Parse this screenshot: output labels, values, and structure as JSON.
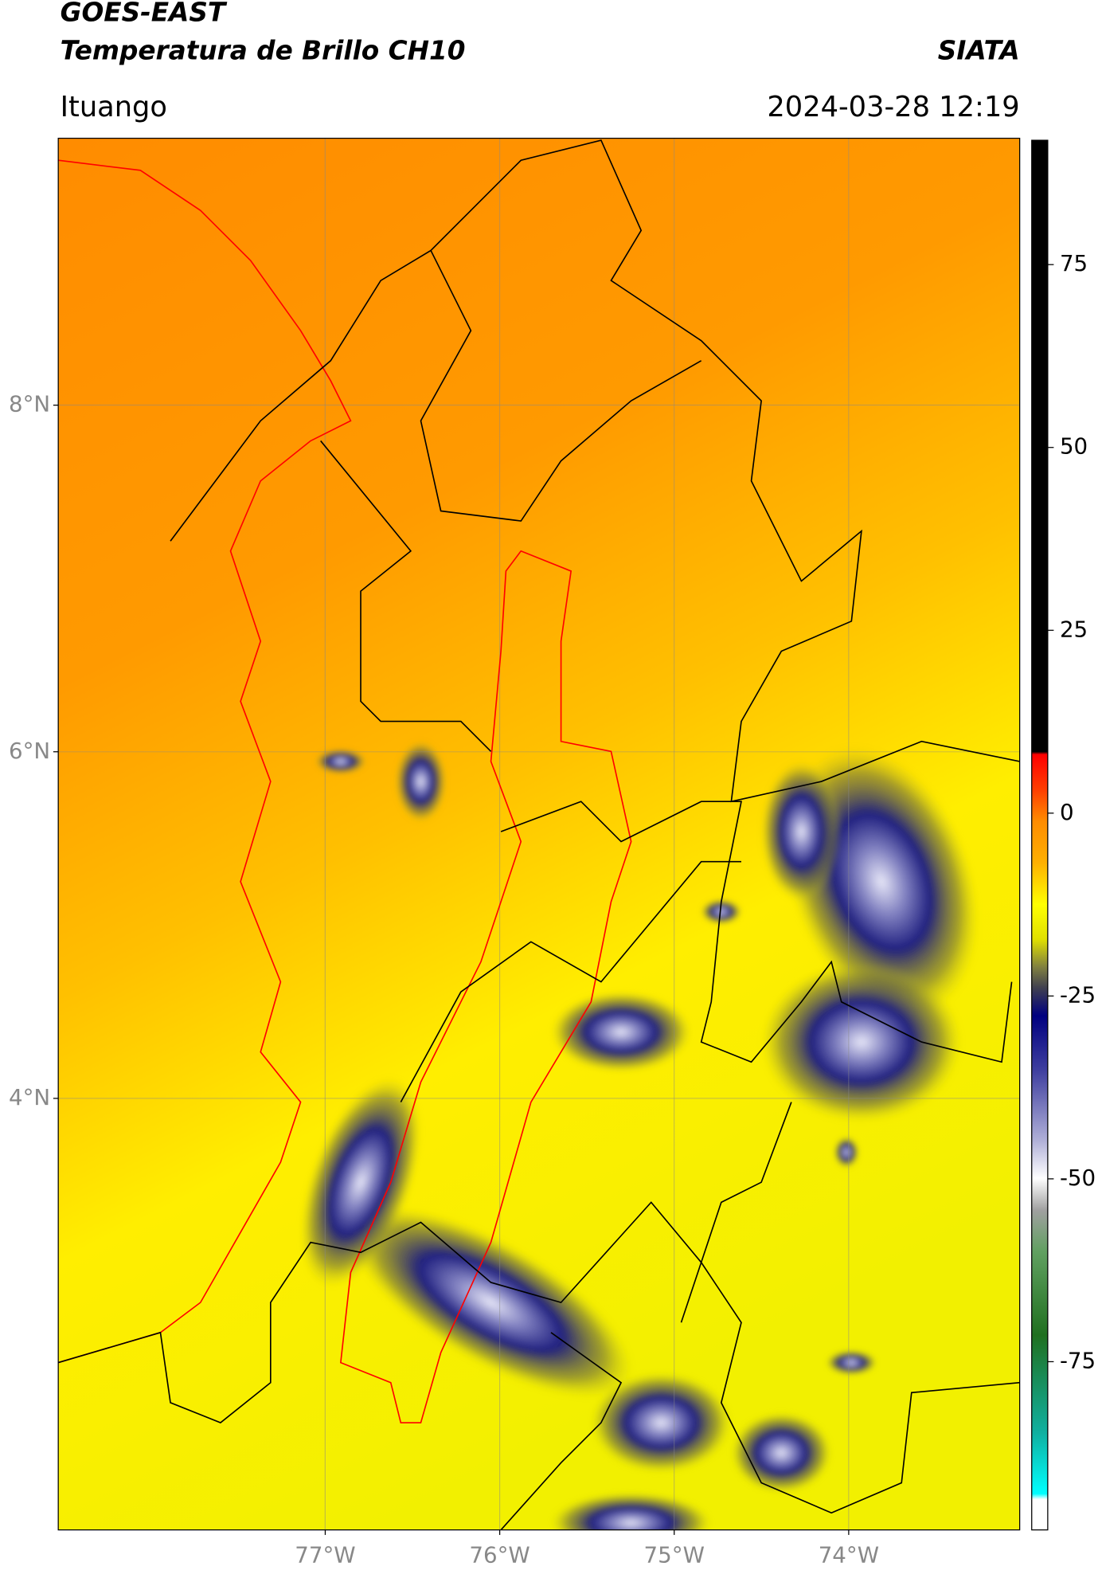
{
  "header": {
    "title": "GOES-EAST",
    "subtitle": "Temperatura de Brillo CH10",
    "source": "SIATA",
    "location": "Ituango",
    "datetime": "2024-03-28 12:19"
  },
  "map": {
    "lon_range": [
      -78.53,
      -73.02
    ],
    "lat_range": [
      1.51,
      9.54
    ],
    "grid": true,
    "lat_ticks": [
      {
        "value": 8,
        "label": "8°N"
      },
      {
        "value": 6,
        "label": "6°N"
      },
      {
        "value": 4,
        "label": "4°N"
      }
    ],
    "lon_ticks": [
      {
        "value": -77,
        "label": "77°W"
      },
      {
        "value": -76,
        "label": "76°W"
      },
      {
        "value": -75,
        "label": "75°W"
      },
      {
        "value": -74,
        "label": "74°W"
      }
    ]
  },
  "colorbar": {
    "range": [
      -98,
      92
    ],
    "ticks": [
      75,
      50,
      25,
      0,
      -25,
      -50,
      -75
    ]
  }
}
